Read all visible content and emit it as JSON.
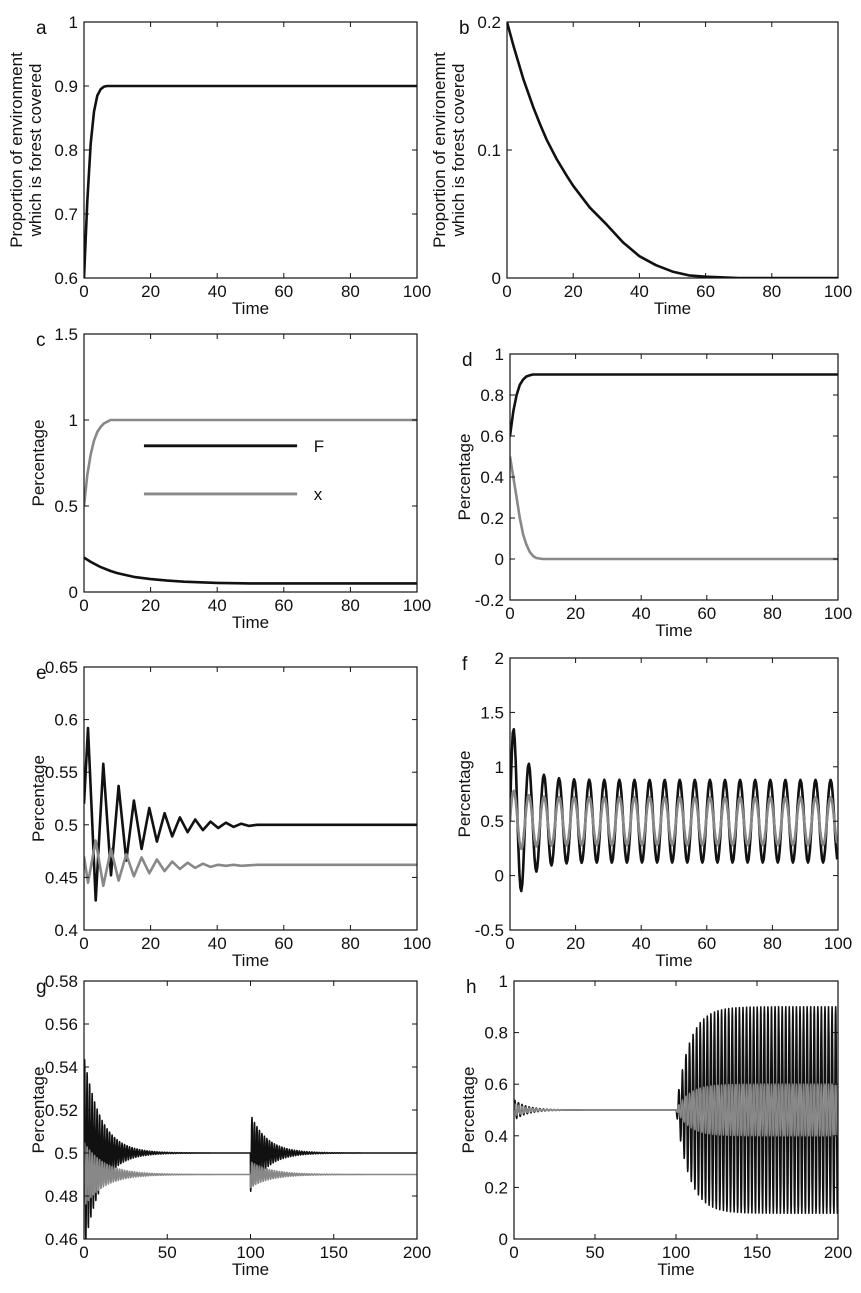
{
  "chart_data": [
    {
      "panel": "a",
      "type": "line",
      "xlabel": "Time",
      "ylabel_lines": [
        "Proportion of environment",
        "which is forest covered"
      ],
      "xlim": [
        0,
        100
      ],
      "ylim": [
        0.6,
        1.0
      ],
      "xticks": [
        "0",
        "20",
        "40",
        "60",
        "80",
        "100"
      ],
      "yticks": [
        "0.6",
        "0.7",
        "0.8",
        "0.9",
        "1"
      ],
      "series": [
        {
          "color": "#111111",
          "x": [
            0,
            1,
            2,
            3,
            4,
            5,
            6,
            7,
            8,
            10,
            15,
            20,
            40,
            60,
            80,
            100
          ],
          "y": [
            0.6,
            0.72,
            0.81,
            0.86,
            0.885,
            0.895,
            0.899,
            0.9,
            0.9,
            0.9,
            0.9,
            0.9,
            0.9,
            0.9,
            0.9,
            0.9
          ]
        }
      ]
    },
    {
      "panel": "b",
      "type": "line",
      "xlabel": "Time",
      "ylabel_lines": [
        "Proportion of environemnt",
        "which is forest covered"
      ],
      "xlim": [
        0,
        100
      ],
      "ylim": [
        0,
        0.2
      ],
      "xticks": [
        "0",
        "20",
        "40",
        "60",
        "80",
        "100"
      ],
      "yticks": [
        "0",
        "0.1",
        "0.2"
      ],
      "series": [
        {
          "color": "#111111",
          "x": [
            0,
            2,
            5,
            8,
            10,
            12,
            15,
            18,
            20,
            25,
            30,
            35,
            40,
            45,
            50,
            55,
            60,
            70,
            80,
            90,
            100
          ],
          "y": [
            0.2,
            0.181,
            0.155,
            0.133,
            0.12,
            0.108,
            0.093,
            0.08,
            0.072,
            0.055,
            0.042,
            0.028,
            0.017,
            0.01,
            0.005,
            0.002,
            0.001,
            0.0,
            0.0,
            0.0,
            0.0
          ]
        }
      ]
    },
    {
      "panel": "c",
      "type": "line",
      "xlabel": "Time",
      "ylabel_lines": [
        "Percentage"
      ],
      "xlim": [
        0,
        100
      ],
      "ylim": [
        0,
        1.5
      ],
      "xticks": [
        "0",
        "20",
        "40",
        "60",
        "80",
        "100"
      ],
      "yticks": [
        "0",
        "0.5",
        "1",
        "1.5"
      ],
      "legend": [
        {
          "label": "F",
          "color": "#111111"
        },
        {
          "label": "x",
          "color": "#888888"
        }
      ],
      "series": [
        {
          "name": "F",
          "color": "#111111",
          "x": [
            0,
            2,
            5,
            8,
            10,
            15,
            20,
            25,
            30,
            40,
            50,
            60,
            80,
            100
          ],
          "y": [
            0.2,
            0.175,
            0.145,
            0.122,
            0.11,
            0.088,
            0.075,
            0.066,
            0.06,
            0.053,
            0.05,
            0.05,
            0.05,
            0.05
          ]
        },
        {
          "name": "x",
          "color": "#888888",
          "x": [
            0,
            1,
            2,
            3,
            4,
            5,
            6,
            7,
            8,
            10,
            20,
            40,
            60,
            80,
            100
          ],
          "y": [
            0.5,
            0.68,
            0.8,
            0.88,
            0.93,
            0.96,
            0.98,
            0.99,
            1.0,
            1.0,
            1.0,
            1.0,
            1.0,
            1.0,
            1.0
          ]
        }
      ]
    },
    {
      "panel": "d",
      "type": "line",
      "xlabel": "Time",
      "ylabel_lines": [
        "Percentage"
      ],
      "xlim": [
        0,
        100
      ],
      "ylim": [
        -0.2,
        1.0
      ],
      "xticks": [
        "0",
        "20",
        "40",
        "60",
        "80",
        "100"
      ],
      "yticks": [
        "-0.2",
        "0",
        "0.2",
        "0.4",
        "0.6",
        "0.8",
        "1"
      ],
      "series": [
        {
          "color": "#111111",
          "x": [
            0,
            1,
            2,
            3,
            4,
            5,
            6,
            7,
            8,
            10,
            20,
            40,
            60,
            80,
            100
          ],
          "y": [
            0.6,
            0.72,
            0.8,
            0.85,
            0.875,
            0.89,
            0.896,
            0.9,
            0.9,
            0.9,
            0.9,
            0.9,
            0.9,
            0.9,
            0.9
          ]
        },
        {
          "color": "#888888",
          "x": [
            0,
            1,
            2,
            3,
            4,
            5,
            6,
            7,
            8,
            10,
            20,
            40,
            60,
            80,
            100
          ],
          "y": [
            0.5,
            0.4,
            0.3,
            0.2,
            0.12,
            0.07,
            0.035,
            0.015,
            0.005,
            0.0,
            0.0,
            0.0,
            0.0,
            0.0,
            0.0
          ]
        }
      ]
    },
    {
      "panel": "e",
      "type": "line",
      "xlabel": "Time",
      "ylabel_lines": [
        "Percentage"
      ],
      "xlim": [
        0,
        100
      ],
      "ylim": [
        0.4,
        0.65
      ],
      "xticks": [
        "0",
        "20",
        "40",
        "60",
        "80",
        "100"
      ],
      "yticks": [
        "0.4",
        "0.45",
        "0.5",
        "0.55",
        "0.6",
        "0.65"
      ],
      "series": [
        {
          "color": "#111111",
          "x": [
            0,
            1.2,
            3.5,
            5.8,
            8.1,
            10.4,
            12.7,
            15,
            17.3,
            19.6,
            21.9,
            24.2,
            26.5,
            28.8,
            31.1,
            33.4,
            35.7,
            38,
            40.3,
            42.6,
            44.9,
            47.2,
            49.5,
            52,
            60,
            80,
            100
          ],
          "y": [
            0.52,
            0.592,
            0.428,
            0.558,
            0.452,
            0.537,
            0.466,
            0.523,
            0.477,
            0.516,
            0.484,
            0.511,
            0.489,
            0.507,
            0.493,
            0.505,
            0.495,
            0.503,
            0.497,
            0.502,
            0.498,
            0.501,
            0.499,
            0.5,
            0.5,
            0.5,
            0.5
          ]
        },
        {
          "color": "#888888",
          "x": [
            0,
            1.2,
            3.5,
            5.8,
            8.1,
            10.4,
            12.7,
            15,
            17.3,
            19.6,
            21.9,
            24.2,
            26.5,
            28.8,
            31.1,
            33.4,
            35.7,
            38,
            40.3,
            42.6,
            44.9,
            47.2,
            52,
            60,
            80,
            100
          ],
          "y": [
            0.47,
            0.445,
            0.485,
            0.442,
            0.477,
            0.447,
            0.472,
            0.451,
            0.469,
            0.454,
            0.467,
            0.456,
            0.465,
            0.458,
            0.464,
            0.459,
            0.463,
            0.46,
            0.462,
            0.461,
            0.462,
            0.461,
            0.462,
            0.462,
            0.462,
            0.462
          ]
        }
      ]
    },
    {
      "panel": "f",
      "type": "line",
      "xlabel": "Time",
      "ylabel_lines": [
        "Percentage"
      ],
      "xlim": [
        0,
        100
      ],
      "ylim": [
        -0.5,
        2.0
      ],
      "xticks": [
        "0",
        "20",
        "40",
        "60",
        "80",
        "100"
      ],
      "yticks": [
        "-0.5",
        "0",
        "0.5",
        "1",
        "1.5",
        "2"
      ],
      "oscillations": [
        {
          "color": "#111111",
          "period": 4.6,
          "center": 0.5,
          "amplitude_start": 1.0,
          "amplitude_steady": 0.38,
          "decay_time": 4
        },
        {
          "color": "#888888",
          "period": 4.6,
          "center": 0.5,
          "amplitude_start": 0.3,
          "amplitude_steady": 0.22,
          "decay_time": 4
        }
      ]
    },
    {
      "panel": "g",
      "type": "line",
      "xlabel": "Time",
      "ylabel_lines": [
        "Percentage"
      ],
      "xlim": [
        0,
        200
      ],
      "ylim": [
        0.46,
        0.58
      ],
      "xticks": [
        "0",
        "50",
        "100",
        "150",
        "200"
      ],
      "yticks": [
        "0.46",
        "0.48",
        "0.5",
        "0.52",
        "0.54",
        "0.56",
        "0.58"
      ],
      "oscillations": [
        {
          "color": "#111111",
          "period": 1.5,
          "center": 0.5,
          "amplitude_start": 0.045,
          "decay_time": 10,
          "kick_at": 100,
          "kick_amplitude": 0.018
        },
        {
          "color": "#888888",
          "period": 1.5,
          "center": 0.49,
          "amplitude_start": 0.015,
          "decay_time": 12,
          "kick_at": 100,
          "kick_amplitude": 0.006
        }
      ]
    },
    {
      "panel": "h",
      "type": "line",
      "xlabel": "Time",
      "ylabel_lines": [
        "Percentage"
      ],
      "xlim": [
        0,
        200
      ],
      "ylim": [
        0,
        1.0
      ],
      "xticks": [
        "0",
        "50",
        "100",
        "150",
        "200"
      ],
      "yticks": [
        "0",
        "0.2",
        "0.4",
        "0.6",
        "0.8",
        "1"
      ],
      "oscillations": [
        {
          "color": "#111111",
          "period": 2.2,
          "center": 0.5,
          "amplitude_start": 0.04,
          "decay_time": 8,
          "switch_at": 100,
          "amplitude_after": 0.4,
          "rise_time": 8
        },
        {
          "color": "#888888",
          "period": 2.2,
          "center": 0.5,
          "amplitude_start": 0.025,
          "decay_time": 8,
          "switch_at": 100,
          "amplitude_after": 0.1,
          "rise_time": 8
        }
      ]
    }
  ]
}
